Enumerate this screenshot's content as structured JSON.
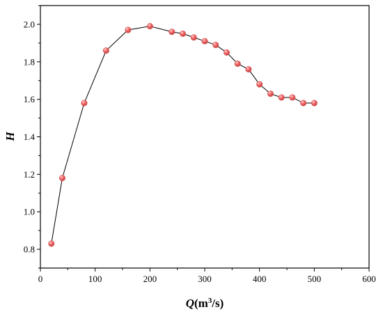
{
  "chart_data": {
    "type": "line",
    "title": "",
    "xlabel": "Q(m³/s)",
    "xlabel_parts": {
      "var": "Q",
      "unit_prefix": "(m",
      "unit_sup": "3",
      "unit_suffix": "/s)"
    },
    "ylabel": "H",
    "xlim": [
      0,
      600
    ],
    "ylim": [
      0.7,
      2.1
    ],
    "xticks": [
      0,
      100,
      200,
      300,
      400,
      500,
      600
    ],
    "yticks": [
      0.8,
      1.0,
      1.2,
      1.4,
      1.6,
      1.8,
      2.0
    ],
    "xtick_labels": [
      "0",
      "100",
      "200",
      "300",
      "400",
      "500",
      "600"
    ],
    "ytick_labels": [
      "0.8",
      "1.0",
      "1.2",
      "1.4",
      "1.6",
      "1.8",
      "2.0"
    ],
    "grid": false,
    "legend": "none",
    "series": [
      {
        "x": [
          20,
          40,
          80,
          120,
          160,
          200,
          240,
          260,
          280,
          300,
          320,
          340,
          360,
          380,
          400,
          420,
          440,
          460,
          480,
          500
        ],
        "y": [
          0.83,
          1.18,
          1.58,
          1.86,
          1.97,
          1.99,
          1.96,
          1.95,
          1.93,
          1.91,
          1.89,
          1.85,
          1.79,
          1.76,
          1.68,
          1.63,
          1.61,
          1.61,
          1.58,
          1.58
        ],
        "line_color": "#000000",
        "marker_color": "#f26b6b"
      }
    ]
  }
}
